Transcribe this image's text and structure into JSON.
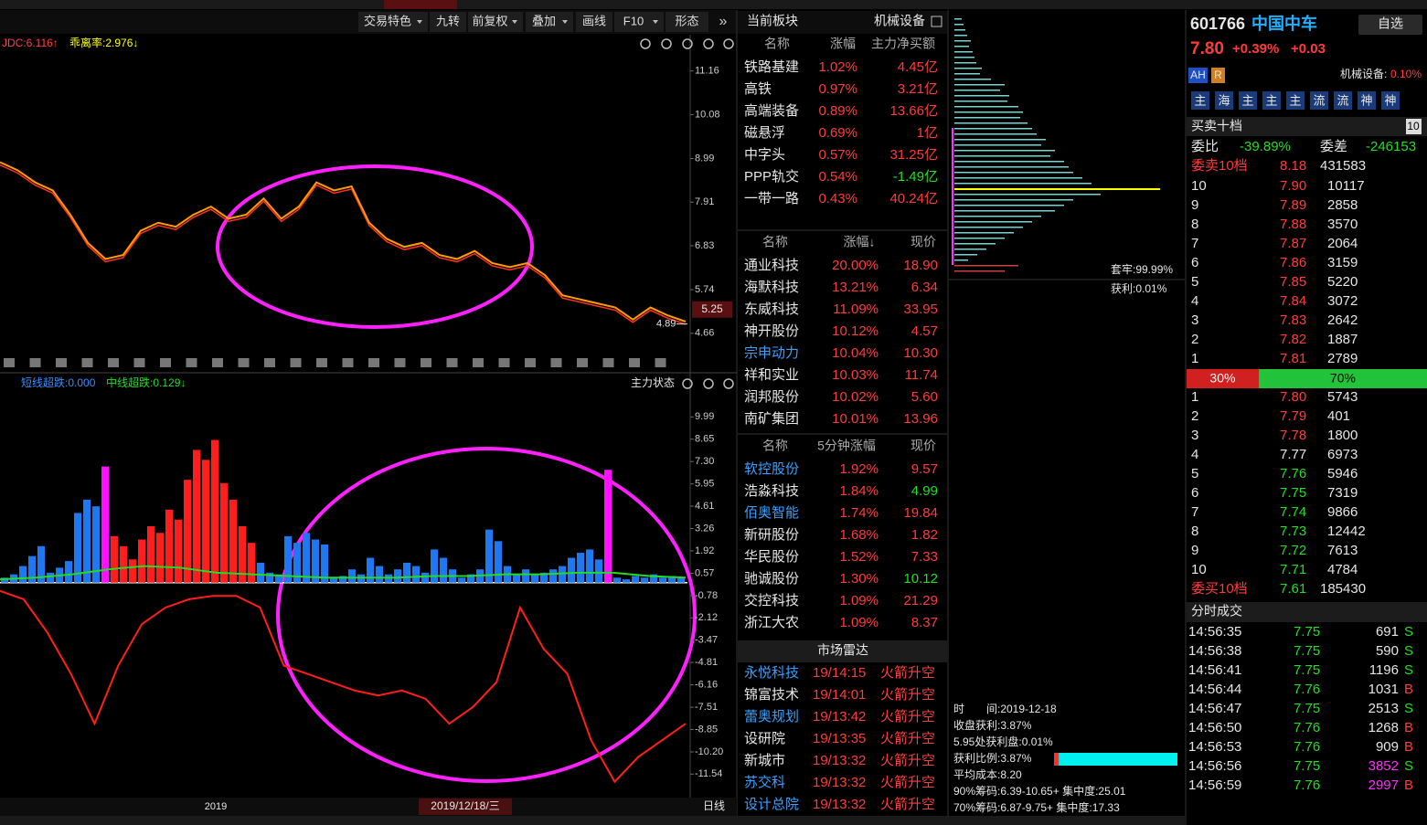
{
  "toolbar": {
    "items": [
      "交易特色",
      "九转",
      "前复权",
      "叠加",
      "画线",
      "F10",
      "形态"
    ],
    "dropdown": [
      true,
      false,
      true,
      true,
      false,
      true,
      false
    ]
  },
  "price_chart": {
    "type": "line",
    "indicators": [
      "JDC:6.116↑",
      "乖离率:2.976↓"
    ],
    "indicator_colors": [
      "#ff4040",
      "#ffff00"
    ],
    "values": [
      8.9,
      8.7,
      8.4,
      8.2,
      7.6,
      6.9,
      6.5,
      6.6,
      7.2,
      7.4,
      7.3,
      7.6,
      7.8,
      7.5,
      7.6,
      8.0,
      7.5,
      7.8,
      8.4,
      8.2,
      8.3,
      7.4,
      7.0,
      6.8,
      6.9,
      6.6,
      6.5,
      6.7,
      6.4,
      6.3,
      6.4,
      6.1,
      5.6,
      5.5,
      5.4,
      5.3,
      5.0,
      5.3,
      5.1,
      4.95
    ],
    "color": "#ff9c00",
    "ylim": [
      3.75,
      11.9
    ],
    "yticks": [
      4.66,
      5.74,
      6.83,
      7.91,
      8.99,
      10.08,
      11.16
    ],
    "current_price": 5.25,
    "low_marker": 4.89
  },
  "indicator_chart": {
    "type": "bar",
    "labels": [
      "短线超跌:0.000",
      "中线超跌:0.129↓"
    ],
    "label_colors": [
      "#3a8cff",
      "#22dd22"
    ],
    "status_label": "主力状态",
    "ylim": [
      -12.9,
      12.1
    ],
    "yticks": [
      9.99,
      8.65,
      {
        "value": 7.3,
        "label": "7.30"
      },
      5.95,
      4.61,
      3.26,
      1.92,
      0.57,
      -0.78,
      -2.12,
      -3.47,
      -4.81,
      -6.16,
      -7.51,
      -8.85,
      {
        "value": -10.2,
        "label": "-10.20"
      },
      -11.54
    ],
    "bars": {
      "values": [
        0.3,
        0.5,
        1.0,
        1.6,
        2.2,
        0.6,
        0.9,
        1.3,
        4.2,
        5.0,
        4.6,
        7.0,
        2.8,
        2.2,
        1.4,
        2.6,
        3.4,
        3.0,
        4.4,
        3.8,
        6.2,
        8.0,
        7.4,
        8.6,
        6.0,
        5.0,
        3.4,
        2.4,
        1.2,
        0.6,
        0.5,
        2.8,
        2.4,
        3.0,
        2.6,
        2.3,
        0.3,
        0.4,
        0.8,
        0.5,
        1.5,
        1.0,
        0.5,
        0.8,
        1.2,
        1.0,
        0.6,
        2.0,
        1.5,
        0.8,
        0.3,
        0.5,
        0.8,
        3.2,
        2.5,
        1.0,
        0.5,
        0.8,
        0.5,
        0.6,
        0.8,
        1.0,
        1.5,
        1.8,
        2.0,
        1.4,
        6.8,
        0.3,
        0.2,
        0.4,
        0.3,
        0.5,
        0.3,
        0.4,
        0.3
      ],
      "palette": [
        "#1e78f0",
        "#ff1e1e",
        "#ff10ff"
      ],
      "color_index": [
        0,
        0,
        0,
        0,
        0,
        0,
        0,
        0,
        0,
        0,
        0,
        2,
        1,
        1,
        1,
        1,
        1,
        1,
        1,
        1,
        1,
        1,
        1,
        1,
        1,
        1,
        1,
        1,
        0,
        0,
        0,
        0,
        0,
        0,
        0,
        0,
        0,
        0,
        0,
        0,
        0,
        0,
        0,
        0,
        0,
        0,
        0,
        0,
        0,
        0,
        0,
        0,
        0,
        0,
        0,
        0,
        0,
        0,
        0,
        0,
        0,
        0,
        0,
        0,
        0,
        0,
        2,
        0,
        0,
        0,
        0,
        0,
        0,
        0,
        0
      ]
    },
    "green_line": {
      "color": "#22dd22",
      "values": [
        0.2,
        0.3,
        0.5,
        0.8,
        1.0,
        0.9,
        0.6,
        0.5,
        0.4,
        0.3,
        0.3,
        0.3,
        0.4,
        0.4,
        0.5,
        0.5,
        0.6,
        0.6,
        0.4,
        0.3
      ]
    },
    "red_line": {
      "color": "#ff1e1e",
      "values": [
        -0.5,
        -1.0,
        -3.0,
        -5.5,
        -8.5,
        -5.0,
        -2.5,
        -1.5,
        -1.0,
        -0.8,
        -0.8,
        -1.5,
        -5.0,
        -5.5,
        -6.0,
        -6.5,
        -6.8,
        -6.5,
        -7.0,
        -8.5,
        -7.5,
        -6.0,
        -1.5,
        -4.0,
        -5.5,
        -9.5,
        -12.0,
        -10.5,
        -9.5,
        -8.5
      ]
    }
  },
  "time_axis": {
    "year": "2019",
    "cursor_date": "2019/12/18/三",
    "period": "日线"
  },
  "board_panel": {
    "title": "当前板块",
    "board": "机械设备",
    "headers": [
      "名称",
      "涨幅",
      "主力净买额"
    ],
    "rows": [
      [
        "铁路基建",
        "1.02%",
        "4.45亿"
      ],
      [
        "高铁",
        "0.97%",
        "3.21亿"
      ],
      [
        "高端装备",
        "0.89%",
        "13.66亿"
      ],
      [
        "磁悬浮",
        "0.69%",
        "1亿"
      ],
      [
        "中字头",
        "0.57%",
        "31.25亿"
      ],
      [
        "PPP轨交",
        "0.54%",
        "-1.49亿"
      ],
      [
        "一带一路",
        "0.43%",
        "40.24亿"
      ]
    ]
  },
  "gainers": {
    "headers": [
      "名称",
      "涨幅↓",
      "现价"
    ],
    "rows": [
      {
        "name": "通业科技",
        "change": "20.00%",
        "price": "18.90"
      },
      {
        "name": "海默科技",
        "change": "13.21%",
        "price": "6.34"
      },
      {
        "name": "东威科技",
        "change": "11.09%",
        "price": "33.95"
      },
      {
        "name": "神开股份",
        "change": "10.12%",
        "price": "4.57"
      },
      {
        "name": "宗申动力",
        "change": "10.04%",
        "price": "10.30",
        "name_color": "#3aa0ff"
      },
      {
        "name": "祥和实业",
        "change": "10.03%",
        "price": "11.74"
      },
      {
        "name": "润邦股份",
        "change": "10.02%",
        "price": "5.60"
      },
      {
        "name": "南矿集团",
        "change": "10.01%",
        "price": "13.96"
      }
    ]
  },
  "five_minute": {
    "headers": [
      "名称",
      "5分钟涨幅",
      "现价"
    ],
    "rows": [
      {
        "name": "软控股份",
        "change": "1.92%",
        "price": "9.57",
        "name_color": "#3aa0ff"
      },
      {
        "name": "浩淼科技",
        "change": "1.84%",
        "price": "4.99",
        "price_color": "#22dd22"
      },
      {
        "name": "佰奥智能",
        "change": "1.74%",
        "price": "19.84",
        "name_color": "#3aa0ff"
      },
      {
        "name": "新研股份",
        "change": "1.68%",
        "price": "1.82"
      },
      {
        "name": "华民股份",
        "change": "1.52%",
        "price": "7.33"
      },
      {
        "name": "驰诚股份",
        "change": "1.30%",
        "price": "10.12",
        "price_color": "#22dd22"
      },
      {
        "name": "交控科技",
        "change": "1.09%",
        "price": "21.29"
      },
      {
        "name": "浙江大农",
        "change": "1.09%",
        "price": "8.37"
      }
    ]
  },
  "radar": {
    "title": "市场雷达",
    "rows": [
      {
        "name": "永悦科技",
        "time": "19/14:15",
        "event": "火箭升空",
        "name_color": "#3aa0ff"
      },
      {
        "name": "锦富技术",
        "time": "19/14:01",
        "event": "火箭升空"
      },
      {
        "name": "蕾奥规划",
        "time": "19/13:42",
        "event": "火箭升空",
        "name_color": "#3aa0ff"
      },
      {
        "name": "设研院",
        "time": "19/13:35",
        "event": "火箭升空"
      },
      {
        "name": "新城市",
        "time": "19/13:32",
        "event": "火箭升空"
      },
      {
        "name": "苏交科",
        "time": "19/13:32",
        "event": "火箭升空",
        "name_color": "#3aa0ff"
      },
      {
        "name": "设计总院",
        "time": "19/13:32",
        "event": "火箭升空",
        "name_color": "#3aa0ff"
      }
    ]
  },
  "chip": {
    "values": [
      8,
      10,
      12,
      14,
      18,
      16,
      20,
      22,
      24,
      30,
      28,
      40,
      55,
      50,
      60,
      58,
      70,
      75,
      72,
      80,
      85,
      90,
      100,
      95,
      110,
      105,
      120,
      125,
      130,
      140,
      150,
      225,
      160,
      130,
      120,
      110,
      95,
      85,
      75,
      65,
      55,
      45,
      35,
      25,
      15,
      70,
      55
    ],
    "color": "#7fd0d0",
    "current_index": 31,
    "current_color": "#ffff00",
    "red_from": 45,
    "red_color": "#c84040",
    "trapped": "套牢:99.99%",
    "profit": "获利:0.01%",
    "info": [
      "时　　间:2019-12-18",
      "收盘获利:3.87%",
      "5.95处获利盘:0.01%"
    ],
    "profit_ratio": {
      "value": 3.87,
      "label": "获利比例:3.87%"
    },
    "info2": [
      "平均成本:8.20",
      "90%筹码:6.39-10.65+ 集中度:25.01",
      "70%筹码:6.87-9.75+ 集中度:17.33"
    ]
  },
  "quote": {
    "code": "601766",
    "name": "中国中车",
    "watch": "自选",
    "price": "7.80",
    "change_pct": "+0.39%",
    "change": "+0.03",
    "badges": [
      "AH",
      "R"
    ],
    "sector": "机械设备:",
    "sector_change": "0.10%",
    "buttons": [
      "主",
      "海",
      "主",
      "主",
      "主",
      "流",
      "流",
      "神",
      "神"
    ],
    "book_title": "买卖十档",
    "book_badge": "10",
    "ratio_label": "委比",
    "ratio": "-39.89%",
    "diff_label": "委差",
    "diff": "-246153",
    "ask10": [
      "委卖10档",
      "8.18",
      "431583"
    ],
    "asks": [
      [
        "10",
        "7.90",
        "10117"
      ],
      [
        "9",
        "7.89",
        "2858"
      ],
      [
        "8",
        "7.88",
        "3570"
      ],
      [
        "7",
        "7.87",
        "2064"
      ],
      [
        "6",
        "7.86",
        "3159"
      ],
      [
        "5",
        "7.85",
        "5220"
      ],
      [
        "4",
        "7.84",
        "3072"
      ],
      [
        "3",
        "7.83",
        "2642"
      ],
      [
        "2",
        "7.82",
        "1887"
      ],
      [
        "1",
        "7.81",
        "2789"
      ]
    ],
    "balance": [
      {
        "value": 30,
        "label": "30%"
      },
      {
        "value": 70,
        "label": "70%"
      }
    ],
    "bids": [
      [
        "1",
        "7.80",
        "5743"
      ],
      [
        "2",
        "7.79",
        "401"
      ],
      [
        "3",
        "7.78",
        "1800"
      ],
      [
        "4",
        "7.77",
        "6973"
      ],
      [
        "5",
        "7.76",
        "5946"
      ],
      [
        "6",
        "7.75",
        "7319"
      ],
      [
        "7",
        "7.74",
        "9866"
      ],
      [
        "8",
        "7.73",
        "12442"
      ],
      [
        "9",
        "7.72",
        "7613"
      ],
      [
        "10",
        "7.71",
        "4784"
      ]
    ],
    "bid_colors": [
      "#ff3b3b",
      "#ff3b3b",
      "#ff3b3b",
      "#e6e6e6",
      "#22dd22",
      "#22dd22",
      "#22dd22",
      "#22dd22",
      "#22dd22",
      "#22dd22"
    ],
    "bid10": [
      "委买10档",
      "7.61",
      "185430"
    ],
    "trades_title": "分时成交",
    "trades": [
      {
        "time": "14:56:35",
        "price": "7.75",
        "volume": "691",
        "side": "S"
      },
      {
        "time": "14:56:38",
        "price": "7.75",
        "volume": "590",
        "side": "S"
      },
      {
        "time": "14:56:41",
        "price": "7.75",
        "volume": "1196",
        "side": "S"
      },
      {
        "time": "14:56:44",
        "price": "7.76",
        "volume": "1031",
        "side": "B"
      },
      {
        "time": "14:56:47",
        "price": "7.75",
        "volume": "2513",
        "side": "S"
      },
      {
        "time": "14:56:50",
        "price": "7.76",
        "volume": "1268",
        "side": "B"
      },
      {
        "time": "14:56:53",
        "price": "7.76",
        "volume": "909",
        "side": "B"
      },
      {
        "time": "14:56:56",
        "price": "7.75",
        "volume": "3852",
        "side": "S",
        "volume_color": "#ff30ff"
      },
      {
        "time": "14:56:59",
        "price": "7.76",
        "volume": "2997",
        "side": "B",
        "volume_color": "#ff30ff"
      }
    ]
  }
}
